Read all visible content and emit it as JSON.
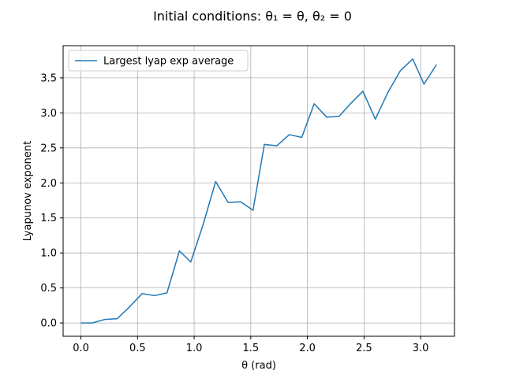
{
  "chart_data": {
    "type": "line",
    "title": "Initial conditions: θ₁ = θ, θ₂ = 0",
    "xlabel": "θ (rad)",
    "ylabel": "Lyapunov exponent",
    "xlim": [
      -0.157,
      3.299
    ],
    "ylim": [
      -0.19,
      3.96
    ],
    "xticks": [
      0.0,
      0.5,
      1.0,
      1.5,
      2.0,
      2.5,
      3.0
    ],
    "xtick_labels": [
      "0.0",
      "0.5",
      "1.0",
      "1.5",
      "2.0",
      "2.5",
      "3.0"
    ],
    "yticks": [
      0.0,
      0.5,
      1.0,
      1.5,
      2.0,
      2.5,
      3.0,
      3.5
    ],
    "ytick_labels": [
      "0.0",
      "0.5",
      "1.0",
      "1.5",
      "2.0",
      "2.5",
      "3.0",
      "3.5"
    ],
    "grid": true,
    "legend_position": "top-left",
    "series": [
      {
        "name": "Largest lyap exp average",
        "color": "#1f77b4",
        "x": [
          0.0,
          0.1,
          0.21,
          0.32,
          0.43,
          0.54,
          0.65,
          0.76,
          0.87,
          0.97,
          1.08,
          1.19,
          1.3,
          1.41,
          1.52,
          1.62,
          1.73,
          1.84,
          1.95,
          2.06,
          2.17,
          2.28,
          2.38,
          2.49,
          2.6,
          2.71,
          2.82,
          2.93,
          3.03,
          3.14
        ],
        "y": [
          0.0,
          0.0,
          0.05,
          0.06,
          0.23,
          0.42,
          0.39,
          0.43,
          1.03,
          0.87,
          1.41,
          2.02,
          1.72,
          1.73,
          1.61,
          2.55,
          2.53,
          2.69,
          2.65,
          3.13,
          2.94,
          2.95,
          3.13,
          3.31,
          2.91,
          3.29,
          3.6,
          3.77,
          3.41,
          3.69
        ]
      }
    ]
  }
}
